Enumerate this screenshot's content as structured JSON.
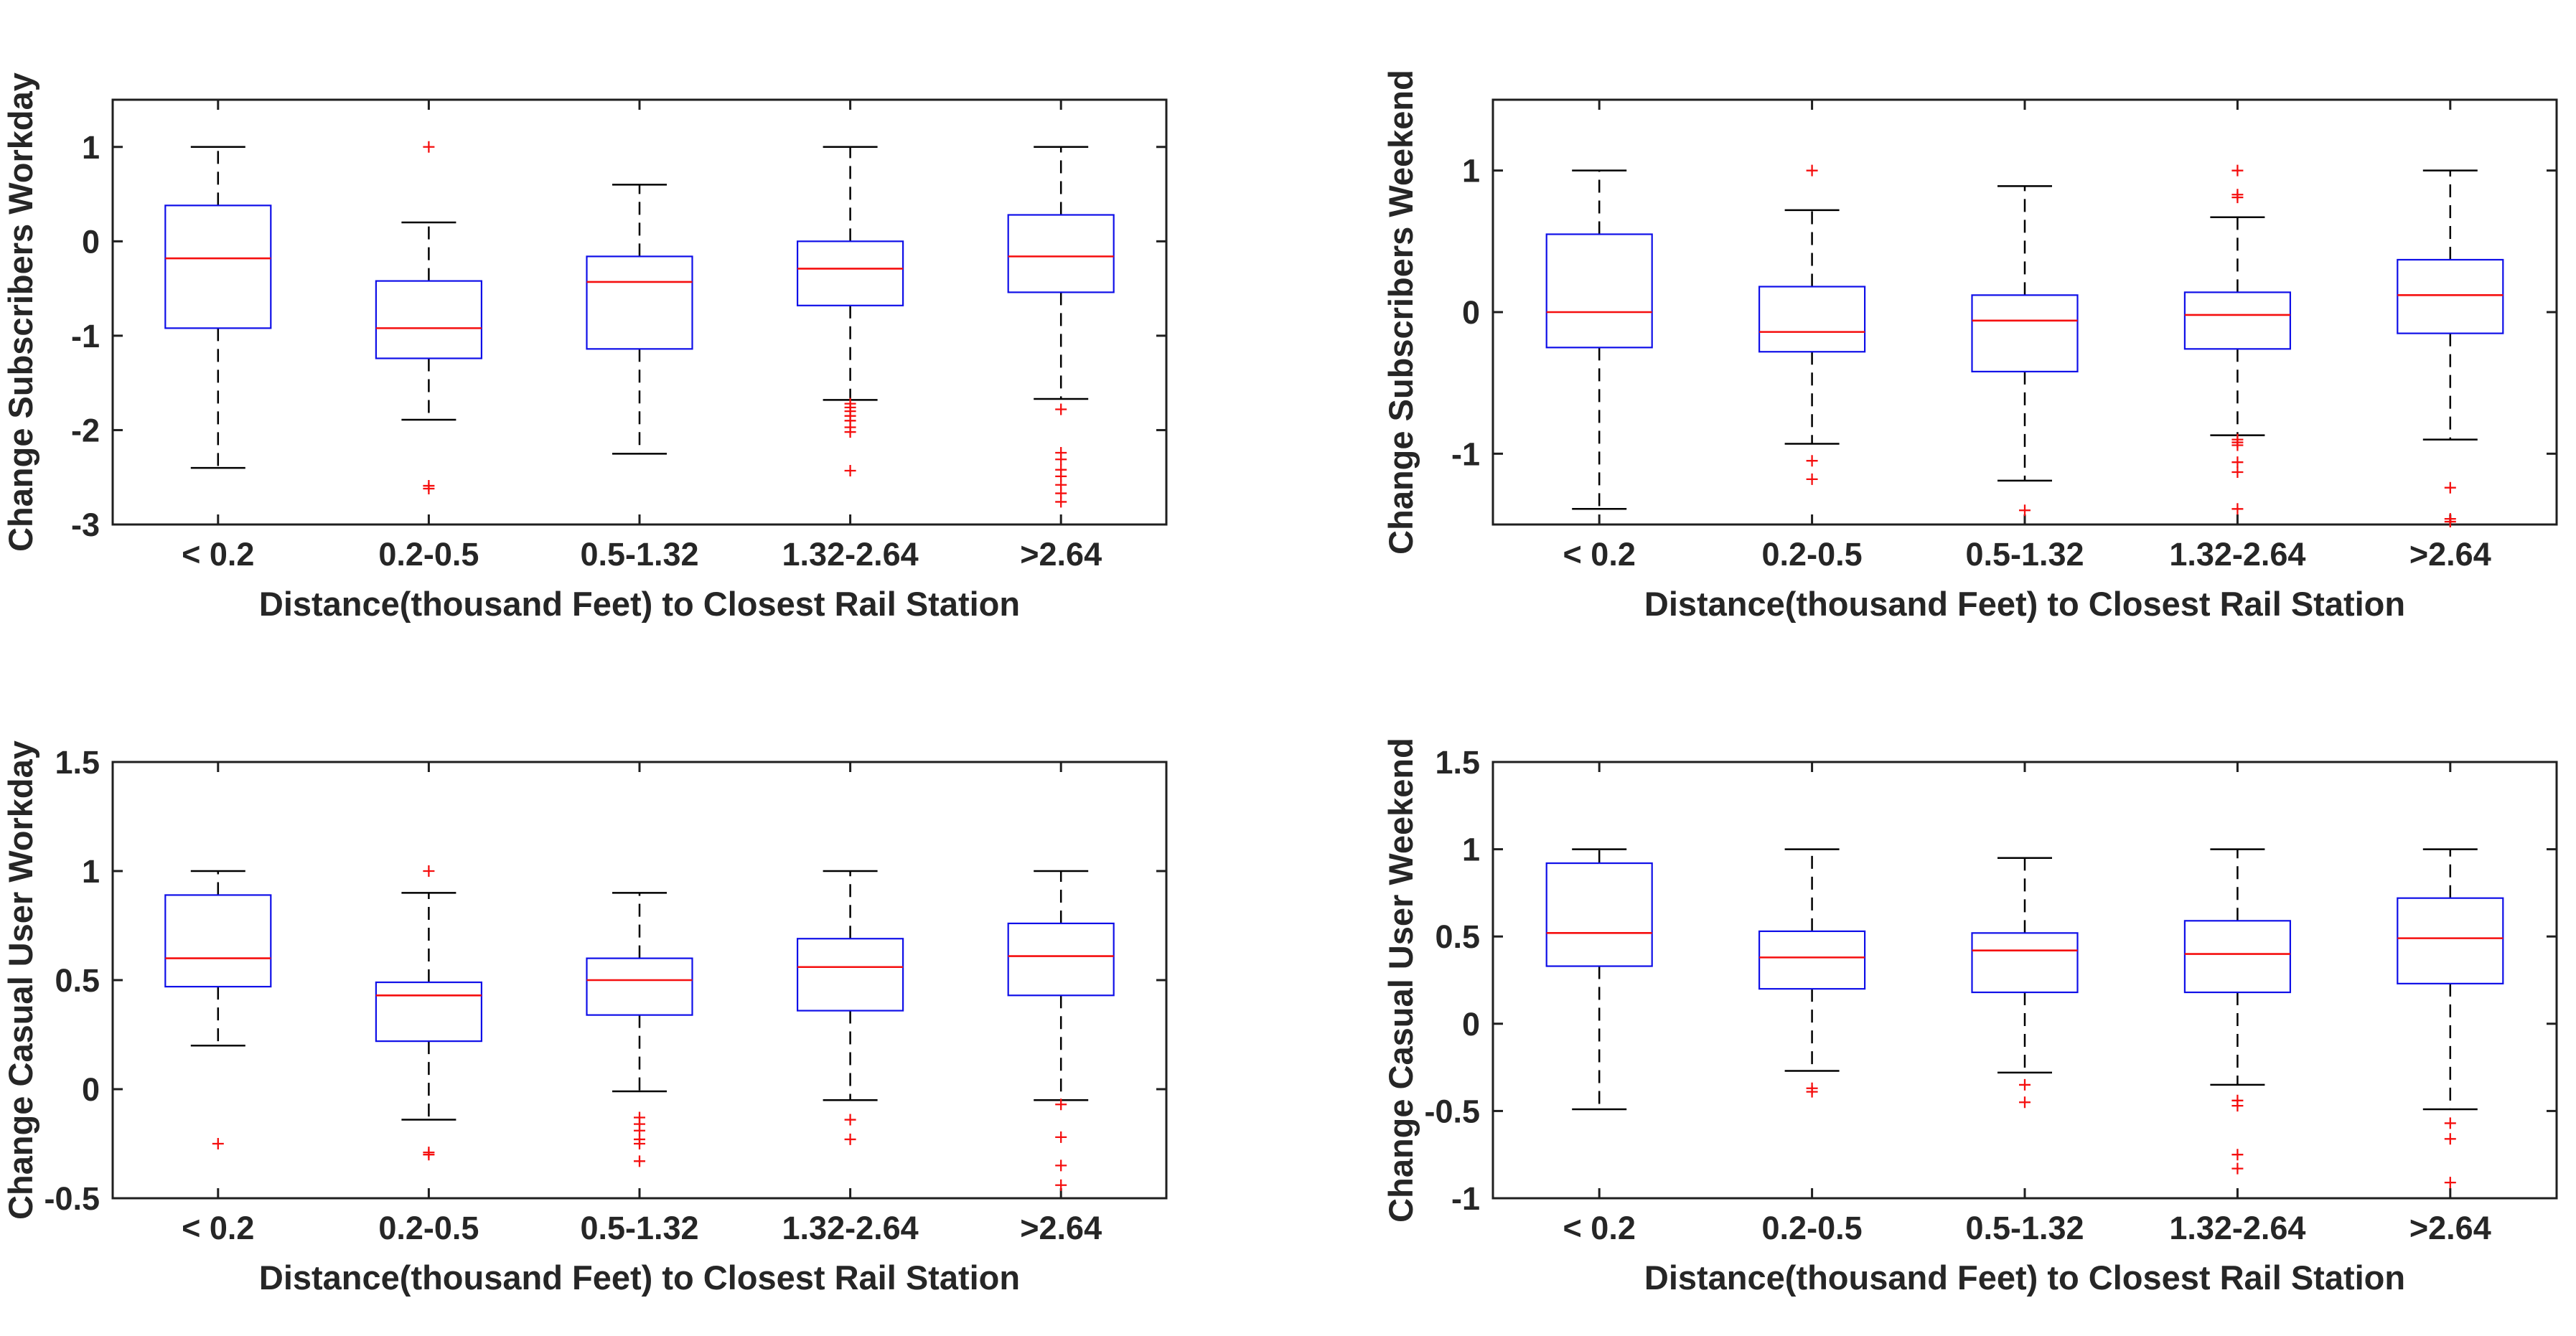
{
  "figure": {
    "background": "#ffffff",
    "colors": {
      "box_edge": "#0f0fe8",
      "median": "#f50f0f",
      "outlier": "#f50f0f",
      "whisker": "#000000",
      "cap": "#000000",
      "axis": "#1f1f1f",
      "label_text": "#262626"
    }
  },
  "chart_data": [
    {
      "id": "subscribers-workday",
      "type": "boxplot",
      "title": "",
      "ylabel": "Change Subscribers Workday",
      "xlabel": "Distance(thousand Feet) to Closest Rail Station",
      "ylim": [
        -3,
        1.5
      ],
      "yticks": [
        1,
        0,
        -1,
        -2,
        -3
      ],
      "grid": false,
      "categories": [
        "< 0.2",
        "0.2-0.5",
        "0.5-1.32",
        "1.32-2.64",
        ">2.64"
      ],
      "boxes": [
        {
          "whislo": -2.4,
          "q1": -0.92,
          "med": -0.18,
          "q3": 0.38,
          "whishi": 1.0,
          "outliers": []
        },
        {
          "whislo": -1.89,
          "q1": -1.24,
          "med": -0.92,
          "q3": -0.42,
          "whishi": 0.2,
          "outliers": [
            1.0,
            -2.59,
            -2.62
          ]
        },
        {
          "whislo": -2.25,
          "q1": -1.14,
          "med": -0.43,
          "q3": -0.16,
          "whishi": 0.6,
          "outliers": []
        },
        {
          "whislo": -1.68,
          "q1": -0.68,
          "med": -0.29,
          "q3": 0.0,
          "whishi": 1.0,
          "outliers": [
            -1.72,
            -1.76,
            -1.8,
            -1.85,
            -1.9,
            -1.97,
            -2.02,
            -2.43
          ]
        },
        {
          "whislo": -1.67,
          "q1": -0.54,
          "med": -0.16,
          "q3": 0.28,
          "whishi": 1.0,
          "outliers": [
            -1.78,
            -2.24,
            -2.31,
            -2.42,
            -2.49,
            -2.58,
            -2.67,
            -2.76
          ]
        }
      ]
    },
    {
      "id": "subscribers-weekend",
      "type": "boxplot",
      "title": "",
      "ylabel": "Change Subscribers Weekend",
      "xlabel": "Distance(thousand Feet) to Closest Rail Station",
      "ylim": [
        -1.5,
        1.5
      ],
      "yticks": [
        1,
        0,
        -1
      ],
      "grid": false,
      "categories": [
        "< 0.2",
        "0.2-0.5",
        "0.5-1.32",
        "1.32-2.64",
        ">2.64"
      ],
      "boxes": [
        {
          "whislo": -1.39,
          "q1": -0.25,
          "med": 0.0,
          "q3": 0.55,
          "whishi": 1.0,
          "outliers": []
        },
        {
          "whislo": -0.93,
          "q1": -0.28,
          "med": -0.14,
          "q3": 0.18,
          "whishi": 0.72,
          "outliers": [
            1.0,
            -1.05,
            -1.18
          ]
        },
        {
          "whislo": -1.19,
          "q1": -0.42,
          "med": -0.06,
          "q3": 0.12,
          "whishi": 0.89,
          "outliers": [
            -1.4
          ]
        },
        {
          "whislo": -0.87,
          "q1": -0.26,
          "med": -0.02,
          "q3": 0.14,
          "whishi": 0.67,
          "outliers": [
            1.0,
            0.83,
            0.81,
            -0.9,
            -0.92,
            -0.94,
            -1.06,
            -1.13,
            -1.39
          ]
        },
        {
          "whislo": -0.9,
          "q1": -0.15,
          "med": 0.12,
          "q3": 0.37,
          "whishi": 1.0,
          "outliers": [
            -1.24,
            -1.46,
            -1.48
          ]
        }
      ]
    },
    {
      "id": "casual-workday",
      "type": "boxplot",
      "title": "",
      "ylabel": "Change Casual User Workday",
      "xlabel": "Distance(thousand Feet) to Closest Rail Station",
      "ylim": [
        -0.5,
        1.5
      ],
      "yticks": [
        1.5,
        1,
        0.5,
        0,
        -0.5
      ],
      "grid": false,
      "categories": [
        "< 0.2",
        "0.2-0.5",
        "0.5-1.32",
        "1.32-2.64",
        ">2.64"
      ],
      "boxes": [
        {
          "whislo": 0.2,
          "q1": 0.47,
          "med": 0.6,
          "q3": 0.89,
          "whishi": 1.0,
          "outliers": [
            -0.25
          ]
        },
        {
          "whislo": -0.14,
          "q1": 0.22,
          "med": 0.43,
          "q3": 0.49,
          "whishi": 0.9,
          "outliers": [
            1.0,
            -0.29,
            -0.3
          ]
        },
        {
          "whislo": -0.01,
          "q1": 0.34,
          "med": 0.5,
          "q3": 0.6,
          "whishi": 0.9,
          "outliers": [
            -0.13,
            -0.16,
            -0.19,
            -0.23,
            -0.25,
            -0.33
          ]
        },
        {
          "whislo": -0.05,
          "q1": 0.36,
          "med": 0.56,
          "q3": 0.69,
          "whishi": 1.0,
          "outliers": [
            -0.14,
            -0.23
          ]
        },
        {
          "whislo": -0.05,
          "q1": 0.43,
          "med": 0.61,
          "q3": 0.76,
          "whishi": 1.0,
          "outliers": [
            -0.07,
            -0.22,
            -0.35,
            -0.44
          ]
        }
      ]
    },
    {
      "id": "casual-weekend",
      "type": "boxplot",
      "title": "",
      "ylabel": "Change Casual User Weekend",
      "xlabel": "Distance(thousand Feet) to Closest Rail Station",
      "ylim": [
        -1,
        1.5
      ],
      "yticks": [
        1.5,
        1,
        0.5,
        0,
        -0.5,
        -1
      ],
      "grid": false,
      "categories": [
        "< 0.2",
        "0.2-0.5",
        "0.5-1.32",
        "1.32-2.64",
        ">2.64"
      ],
      "boxes": [
        {
          "whislo": -0.49,
          "q1": 0.33,
          "med": 0.52,
          "q3": 0.92,
          "whishi": 1.0,
          "outliers": []
        },
        {
          "whislo": -0.27,
          "q1": 0.2,
          "med": 0.38,
          "q3": 0.53,
          "whishi": 1.0,
          "outliers": [
            -0.37,
            -0.39
          ]
        },
        {
          "whislo": -0.28,
          "q1": 0.18,
          "med": 0.42,
          "q3": 0.52,
          "whishi": 0.95,
          "outliers": [
            -0.35,
            -0.45
          ]
        },
        {
          "whislo": -0.35,
          "q1": 0.18,
          "med": 0.4,
          "q3": 0.59,
          "whishi": 1.0,
          "outliers": [
            -0.44,
            -0.47,
            -0.75,
            -0.83
          ]
        },
        {
          "whislo": -0.49,
          "q1": 0.23,
          "med": 0.49,
          "q3": 0.72,
          "whishi": 1.0,
          "outliers": [
            -0.57,
            -0.66,
            -0.91
          ]
        }
      ]
    }
  ]
}
